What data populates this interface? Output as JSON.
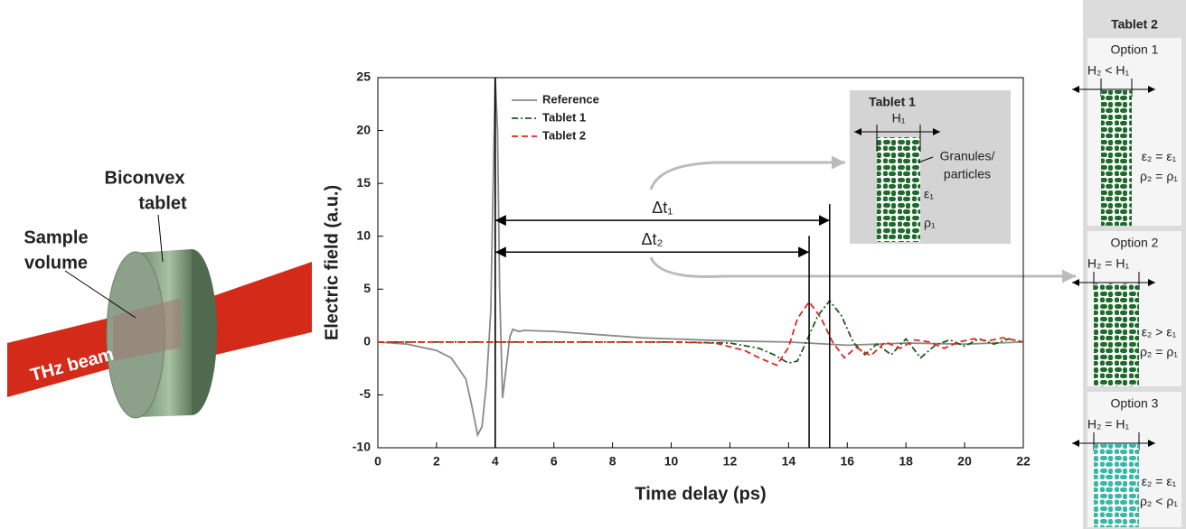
{
  "chart_data": {
    "type": "line",
    "xlabel": "Time delay (ps)",
    "ylabel": "Electric field (a.u.)",
    "xlim": [
      0,
      22
    ],
    "ylim": [
      -10,
      25
    ],
    "xticks": [
      0,
      2,
      4,
      6,
      8,
      10,
      12,
      14,
      16,
      18,
      20,
      22
    ],
    "yticks": [
      -10,
      -5,
      0,
      5,
      10,
      15,
      20,
      25
    ],
    "legend": "upper left",
    "series": [
      {
        "name": "Reference",
        "color": "#8a8a8a",
        "style": "solid",
        "x": [
          0,
          1,
          2,
          2.5,
          3,
          3.2,
          3.4,
          3.55,
          3.7,
          3.85,
          3.95,
          4.0,
          4.08,
          4.15,
          4.25,
          4.35,
          4.5,
          4.6,
          4.8,
          5,
          6,
          7,
          8,
          9,
          10,
          12,
          14,
          16,
          18,
          20,
          22
        ],
        "values": [
          0,
          -0.2,
          -0.8,
          -1.5,
          -3.5,
          -6,
          -8.8,
          -8,
          -4,
          3,
          18,
          25,
          20,
          5,
          -5.3,
          -3,
          0.5,
          1.2,
          1,
          1.1,
          1,
          0.8,
          0.6,
          0.4,
          0.3,
          0.1,
          0,
          -0.3,
          -0.1,
          -0.2,
          0
        ]
      },
      {
        "name": "Tablet 1",
        "color": "#1f5c1a",
        "style": "dashdot",
        "x": [
          0,
          4,
          10,
          12,
          13,
          13.5,
          14,
          14.3,
          14.6,
          15,
          15.4,
          15.8,
          16.2,
          16.6,
          17,
          17.5,
          18,
          18.5,
          19,
          19.5,
          20,
          20.5,
          21,
          21.5,
          22
        ],
        "values": [
          0,
          0,
          0,
          -0.1,
          -0.6,
          -1.2,
          -2,
          -1.8,
          0,
          2.5,
          3.9,
          2.5,
          0,
          -1.2,
          -0.2,
          -1.2,
          0.3,
          -1.5,
          -0.3,
          0.2,
          -0.4,
          0.3,
          -0.2,
          0.3,
          0
        ]
      },
      {
        "name": "Tablet 2",
        "color": "#e0281e",
        "style": "dashed",
        "x": [
          0,
          4,
          10,
          11.5,
          12.5,
          13,
          13.6,
          14,
          14.3,
          14.7,
          15.1,
          15.5,
          15.9,
          16.3,
          16.8,
          17.3,
          17.8,
          18.3,
          18.8,
          19.3,
          19.8,
          20.3,
          20.8,
          21.3,
          22
        ],
        "values": [
          0,
          0,
          0,
          -0.1,
          -0.8,
          -1.5,
          -2.2,
          -0.5,
          2.2,
          3.8,
          2.3,
          0,
          -1.5,
          -0.5,
          -1.3,
          0,
          -0.6,
          0.2,
          0,
          -0.6,
          0,
          0.3,
          0.1,
          0.4,
          0
        ]
      }
    ],
    "annotations": [
      {
        "label": "Δt₁",
        "x_start": 4,
        "x_end": 15.4,
        "y": 11.5
      },
      {
        "label": "Δt₂",
        "x_start": 4,
        "x_end": 14.7,
        "y": 8.5
      }
    ]
  },
  "illustration": {
    "tablet_label": [
      "Biconvex",
      "tablet"
    ],
    "volume_label": [
      "Sample",
      "volume"
    ],
    "beam_label": "THz beam"
  },
  "insets": {
    "tablet1": {
      "title": "Tablet 1",
      "height": "H₁",
      "granules": [
        "Granules/",
        "particles"
      ],
      "permittivity": "ε₁",
      "density": "ρ₁"
    },
    "tablet2": {
      "title": "Tablet 2",
      "options": [
        {
          "title": "Option 1",
          "height": "H₂ < H₁",
          "permittivity": "ε₂ = ε₁",
          "density": "ρ₂ = ρ₁"
        },
        {
          "title": "Option 2",
          "height": "H₂ = H₁",
          "permittivity": "ε₂ > ε₁",
          "density": "ρ₂ = ρ₁"
        },
        {
          "title": "Option 3",
          "height": "H₂ = H₁",
          "permittivity": "ε₂ = ε₁",
          "density": "ρ₂ < ρ₁"
        }
      ]
    }
  }
}
